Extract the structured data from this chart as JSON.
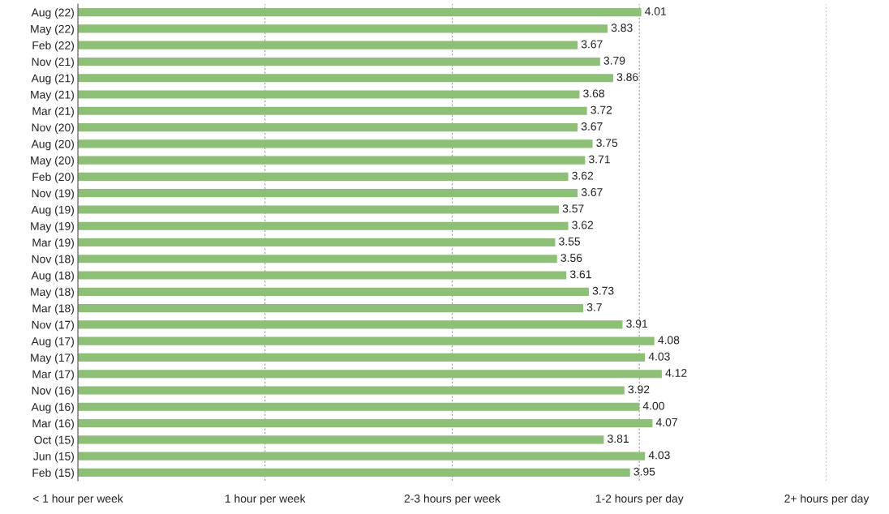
{
  "chart_data": {
    "type": "bar",
    "orientation": "horizontal",
    "color": "#8dbf76",
    "categories": [
      "Aug (22)",
      "May (22)",
      "Feb (22)",
      "Nov (21)",
      "Aug (21)",
      "May (21)",
      "Mar (21)",
      "Nov (20)",
      "Aug (20)",
      "May (20)",
      "Feb (20)",
      "Nov (19)",
      "Aug (19)",
      "May (19)",
      "Mar (19)",
      "Nov (18)",
      "Aug (18)",
      "May (18)",
      "Mar (18)",
      "Nov (17)",
      "Aug (17)",
      "May (17)",
      "Mar (17)",
      "Nov (16)",
      "Aug (16)",
      "Mar (16)",
      "Oct (15)",
      "Jun (15)",
      "Feb (15)"
    ],
    "values": [
      4.01,
      3.83,
      3.67,
      3.79,
      3.86,
      3.68,
      3.72,
      3.67,
      3.75,
      3.71,
      3.62,
      3.67,
      3.57,
      3.62,
      3.55,
      3.56,
      3.61,
      3.73,
      3.7,
      3.91,
      4.08,
      4.03,
      4.12,
      3.92,
      4.0,
      4.07,
      3.81,
      4.03,
      3.95
    ],
    "value_labels": [
      "4.01",
      "3.83",
      "3.67",
      "3.79",
      "3.86",
      "3.68",
      "3.72",
      "3.67",
      "3.75",
      "3.71",
      "3.62",
      "3.67",
      "3.57",
      "3.62",
      "3.55",
      "3.56",
      "3.61",
      "3.73",
      "3.7",
      "3.91",
      "4.08",
      "4.03",
      "4.12",
      "3.92",
      "4.00",
      "4.07",
      "3.81",
      "4.03",
      "3.95"
    ],
    "xlim": [
      1,
      5
    ],
    "ref_lines": [
      {
        "axis": "x",
        "value": 1,
        "label": "< 1 hour per week",
        "color": "#999999",
        "line_style": "dotted"
      },
      {
        "axis": "x",
        "value": 2,
        "label": "1 hour per week",
        "color": "#999999",
        "line_style": "dotted"
      },
      {
        "axis": "x",
        "value": 3,
        "label": "2-3 hours per week",
        "color": "#999999",
        "line_style": "dotted"
      },
      {
        "axis": "x",
        "value": 4,
        "label": "1-2 hours per day",
        "color": "#999999",
        "line_style": "dotted"
      },
      {
        "axis": "x",
        "value": 5,
        "label": "2+ hours per day",
        "color": "#999999",
        "line_style": "dotted"
      }
    ]
  }
}
